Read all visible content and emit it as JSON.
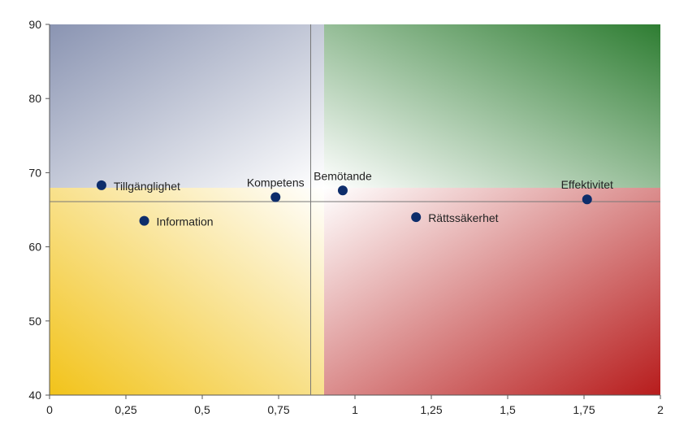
{
  "chart_data": {
    "type": "scatter",
    "title": "",
    "xlabel": "",
    "ylabel": "",
    "xlim": [
      0,
      2
    ],
    "ylim": [
      40,
      90
    ],
    "x_ticks": [
      "0",
      "0,25",
      "0,5",
      "0,75",
      "1",
      "1,25",
      "1,5",
      "1,75",
      "2"
    ],
    "x_tick_values": [
      0,
      0.25,
      0.5,
      0.75,
      1,
      1.25,
      1.5,
      1.75,
      2
    ],
    "y_ticks": [
      "40",
      "50",
      "60",
      "70",
      "80",
      "90"
    ],
    "y_tick_values": [
      40,
      50,
      60,
      70,
      80,
      90
    ],
    "reference_lines": {
      "x": 0.855,
      "y": 66.1
    },
    "quadrant_colors": {
      "top_left": "#8a94b2",
      "top_right": "#2e7d32",
      "bottom_left": "#f2c31a",
      "bottom_right": "#b71c1c"
    },
    "marker_color": "#0d2d6b",
    "points": [
      {
        "label": "Tillgänglighet",
        "x": 0.17,
        "y": 68.3,
        "label_pos": "right"
      },
      {
        "label": "Information",
        "x": 0.31,
        "y": 63.5,
        "label_pos": "right"
      },
      {
        "label": "Kompetens",
        "x": 0.74,
        "y": 66.7,
        "label_pos": "above"
      },
      {
        "label": "Bemötande",
        "x": 0.96,
        "y": 67.6,
        "label_pos": "above"
      },
      {
        "label": "Rättssäkerhet",
        "x": 1.2,
        "y": 64.0,
        "label_pos": "right"
      },
      {
        "label": "Effektivitet",
        "x": 1.76,
        "y": 66.4,
        "label_pos": "above"
      }
    ],
    "grid": false,
    "legend": "none"
  }
}
